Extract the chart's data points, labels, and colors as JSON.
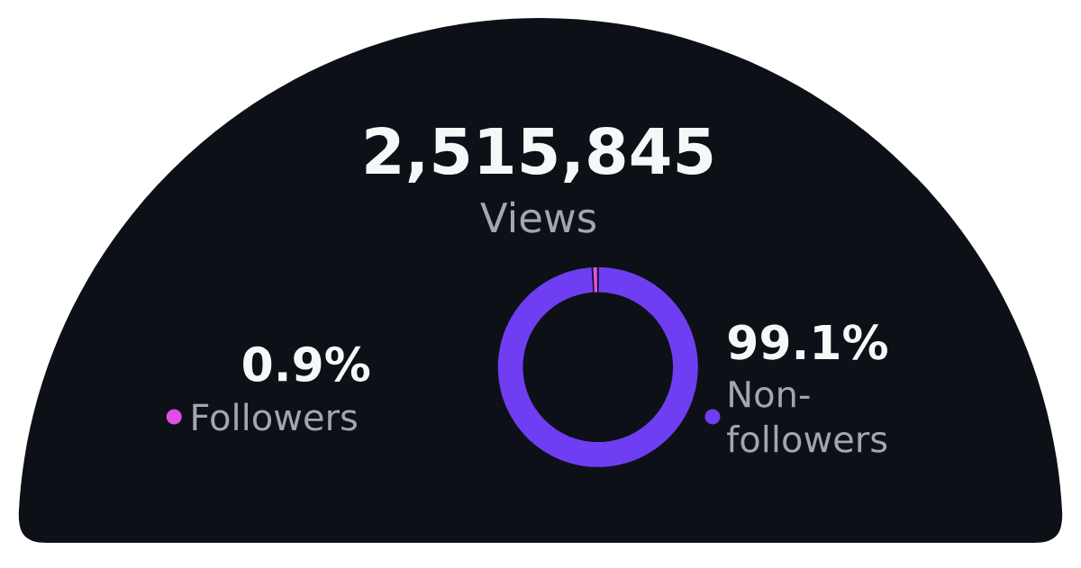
{
  "chart_data": {
    "type": "donut",
    "title": "2,515,845",
    "subtitle": "Views",
    "categories": [
      "Followers",
      "Non-followers"
    ],
    "values": [
      0.9,
      99.1
    ],
    "colors": [
      "#e14de8",
      "#6f3ef2"
    ],
    "value_labels": [
      "0.9%",
      "99.1%"
    ],
    "legend": "bottom"
  }
}
